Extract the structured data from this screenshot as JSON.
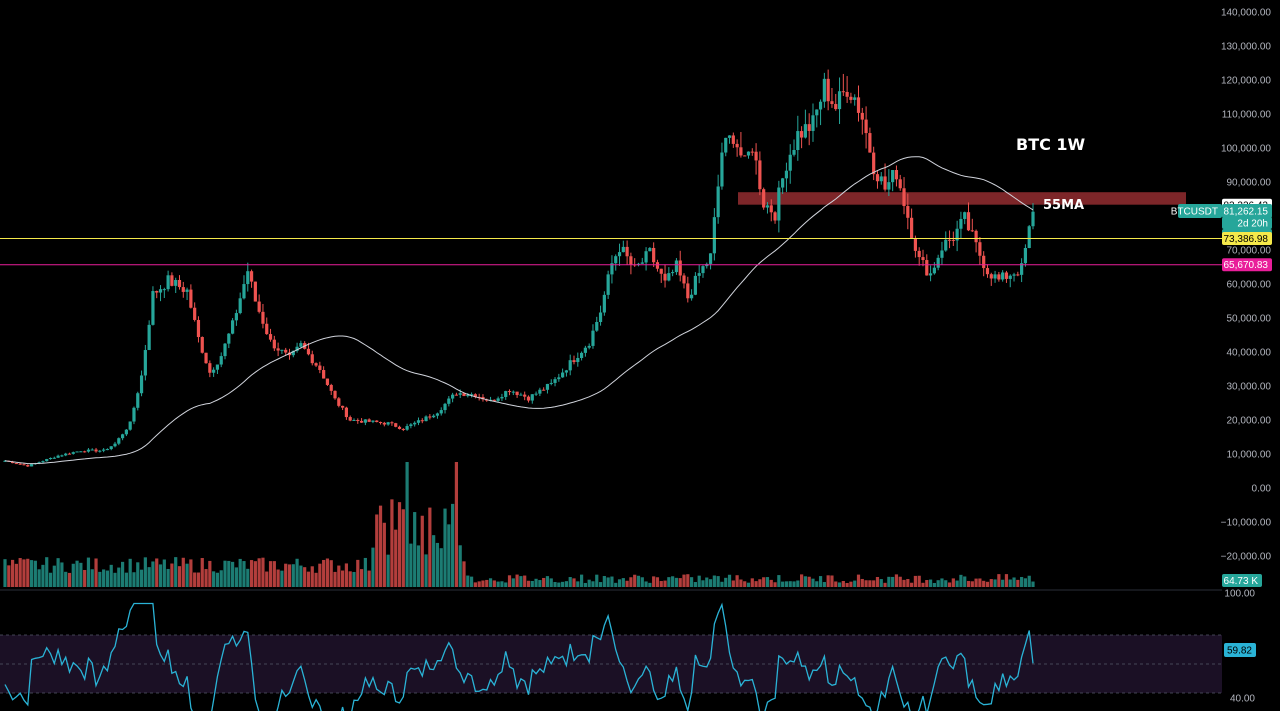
{
  "chart_data": {
    "type": "candlestick",
    "symbol": "BTCUSDT",
    "annotations": {
      "title": "BTC 1W",
      "ma_label": "55MA"
    },
    "price_axis": {
      "ticks": [
        {
          "v": 140000,
          "label": "140,000.00"
        },
        {
          "v": 130000,
          "label": "130,000.00"
        },
        {
          "v": 120000,
          "label": "120,000.00"
        },
        {
          "v": 110000,
          "label": "110,000.00"
        },
        {
          "v": 100000,
          "label": "100,000.00"
        },
        {
          "v": 90000,
          "label": "90,000.00"
        },
        {
          "v": 70000,
          "label": "70,000.00"
        },
        {
          "v": 60000,
          "label": "60,000.00"
        },
        {
          "v": 50000,
          "label": "50,000.00"
        },
        {
          "v": 40000,
          "label": "40,000.00"
        },
        {
          "v": 30000,
          "label": "30,000.00"
        },
        {
          "v": 20000,
          "label": "20,000.00"
        },
        {
          "v": 10000,
          "label": "10,000.00"
        },
        {
          "v": 0,
          "label": "0.00"
        },
        {
          "v": -10000,
          "label": "−10,000.00"
        },
        {
          "v": -20000,
          "label": "−20,000.00"
        }
      ]
    },
    "rsi_axis": {
      "ticks": [
        {
          "v": 100,
          "label": "100.00"
        },
        {
          "v": 40,
          "label": "40.00"
        }
      ]
    },
    "levels": [
      {
        "name": "yellow-level",
        "value": 73386.98,
        "label": "73,386.98",
        "color": "#f5e94a"
      },
      {
        "name": "magenta-level",
        "value": 65670.83,
        "label": "65,670.83",
        "color": "#e91e9a"
      }
    ],
    "resistance_zone": {
      "low": 83326.42,
      "high": 87000,
      "label": "83,326.42",
      "color": "#8b2a2e"
    },
    "last_price": {
      "label": "BTCUSDT",
      "value": "81,262.15",
      "countdown": "2d 20h",
      "sub_label": "70,000.00",
      "color": "#26a69a"
    },
    "volume_label": "64.73 K",
    "rsi_value": "59.82",
    "colors": {
      "up": "#26a69a",
      "down": "#ef5350",
      "ma": "#d1d4dc",
      "rsi": "#2ab3d6",
      "rsi_band": "#1b1025"
    },
    "anchors": [
      [
        0,
        8000
      ],
      [
        6,
        6500
      ],
      [
        14,
        9500
      ],
      [
        20,
        11000
      ],
      [
        26,
        11000
      ],
      [
        29,
        13000
      ],
      [
        33,
        19000
      ],
      [
        36,
        33000
      ],
      [
        39,
        57000
      ],
      [
        43,
        61000
      ],
      [
        48,
        58000
      ],
      [
        51,
        44000
      ],
      [
        54,
        34000
      ],
      [
        57,
        39000
      ],
      [
        60,
        48000
      ],
      [
        64,
        64000
      ],
      [
        66,
        55000
      ],
      [
        70,
        43000
      ],
      [
        75,
        38000
      ],
      [
        78,
        42000
      ],
      [
        83,
        35000
      ],
      [
        87,
        26000
      ],
      [
        91,
        20000
      ],
      [
        96,
        19500
      ],
      [
        101,
        19000
      ],
      [
        105,
        17500
      ],
      [
        110,
        20000
      ],
      [
        114,
        22500
      ],
      [
        119,
        28000
      ],
      [
        124,
        27500
      ],
      [
        128,
        25500
      ],
      [
        133,
        29000
      ],
      [
        138,
        26500
      ],
      [
        144,
        30500
      ],
      [
        150,
        38000
      ],
      [
        154,
        43000
      ],
      [
        157,
        52000
      ],
      [
        160,
        66000
      ],
      [
        162,
        71000
      ],
      [
        166,
        64000
      ],
      [
        170,
        69000
      ],
      [
        174,
        60000
      ],
      [
        177,
        65000
      ],
      [
        180,
        56000
      ],
      [
        183,
        63000
      ],
      [
        186,
        68000
      ],
      [
        189,
        99000
      ],
      [
        192,
        104000
      ],
      [
        195,
        95000
      ],
      [
        197,
        101000
      ],
      [
        200,
        84000
      ],
      [
        203,
        81000
      ],
      [
        206,
        96000
      ],
      [
        209,
        104000
      ],
      [
        213,
        107000
      ],
      [
        216,
        118000
      ],
      [
        219,
        112000
      ],
      [
        222,
        118000
      ],
      [
        224,
        115000
      ],
      [
        226,
        109000
      ],
      [
        229,
        95000
      ],
      [
        232,
        88000
      ],
      [
        235,
        93000
      ],
      [
        238,
        80000
      ],
      [
        241,
        67000
      ],
      [
        244,
        63000
      ],
      [
        247,
        71000
      ],
      [
        250,
        74000
      ],
      [
        253,
        79000
      ],
      [
        256,
        71000
      ],
      [
        259,
        64000
      ],
      [
        262,
        61000
      ],
      [
        265,
        63000
      ],
      [
        268,
        64500
      ],
      [
        271,
        81262
      ]
    ]
  }
}
